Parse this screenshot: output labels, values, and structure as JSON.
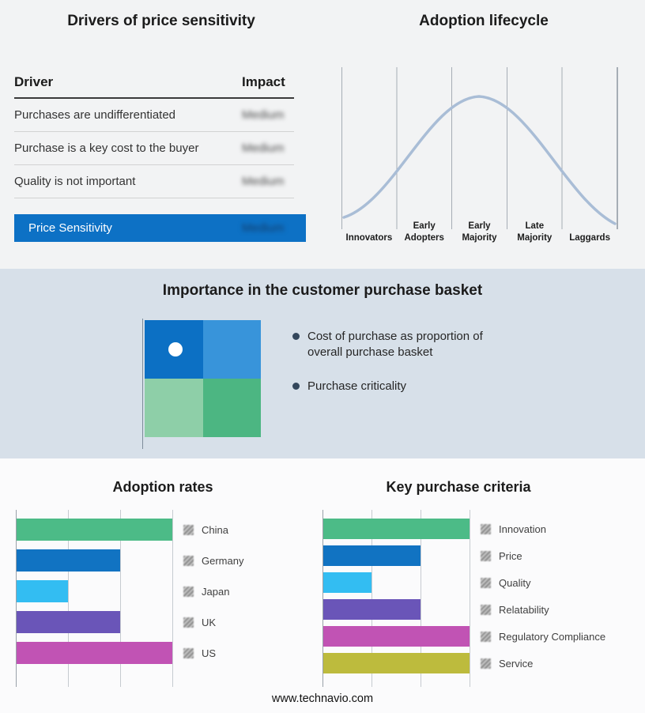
{
  "page": {
    "footer": "www.technavio.com"
  },
  "drivers_panel": {
    "title": "Drivers of price sensitivity",
    "columns": {
      "driver": "Driver",
      "impact": "Impact"
    },
    "rows": [
      {
        "driver": "Purchases are undifferentiated",
        "impact": "Medium"
      },
      {
        "driver": "Purchase is a key cost to the buyer",
        "impact": "Medium"
      },
      {
        "driver": "Quality is not important",
        "impact": "Medium"
      }
    ],
    "summary": {
      "label": "Price Sensitivity",
      "impact": "Medium",
      "bg": "#0d71c5"
    }
  },
  "lifecycle_panel": {
    "title": "Adoption lifecycle",
    "stages": [
      "Innovators",
      "Early Adopters",
      "Early Majority",
      "Late Majority",
      "Laggards"
    ],
    "curve_color": "#a9bdd6"
  },
  "basket_panel": {
    "title": "Importance in the customer purchase basket",
    "bullets": [
      "Cost of purchase as proportion of overall purchase basket",
      "Purchase criticality"
    ],
    "matrix": {
      "top_left": "#0c70c4",
      "top_right": "#3894da",
      "bottom_left": "#8ecfa8",
      "bottom_right": "#4cb682",
      "marker": "#ffffff"
    }
  },
  "chart_data": [
    {
      "type": "bar",
      "title": "Adoption rates",
      "orientation": "horizontal",
      "categories": [
        "China",
        "Germany",
        "Japan",
        "UK",
        "US"
      ],
      "values": [
        3,
        2,
        1,
        2,
        3
      ],
      "xlim": [
        0,
        3
      ],
      "grid": true,
      "legend_position": "right",
      "colors": [
        "#4cbb87",
        "#1173c2",
        "#33bdf2",
        "#6a55b8",
        "#c153b4"
      ]
    },
    {
      "type": "bar",
      "title": "Key purchase criteria",
      "orientation": "horizontal",
      "categories": [
        "Innovation",
        "Price",
        "Quality",
        "Relatability",
        "Regulatory Compliance",
        "Service"
      ],
      "values": [
        3,
        2,
        1,
        2,
        3,
        3
      ],
      "xlim": [
        0,
        3
      ],
      "grid": true,
      "legend_position": "right",
      "colors": [
        "#4cbb87",
        "#1173c2",
        "#33bdf2",
        "#6a55b8",
        "#c153b4",
        "#bdbb3d"
      ]
    }
  ]
}
